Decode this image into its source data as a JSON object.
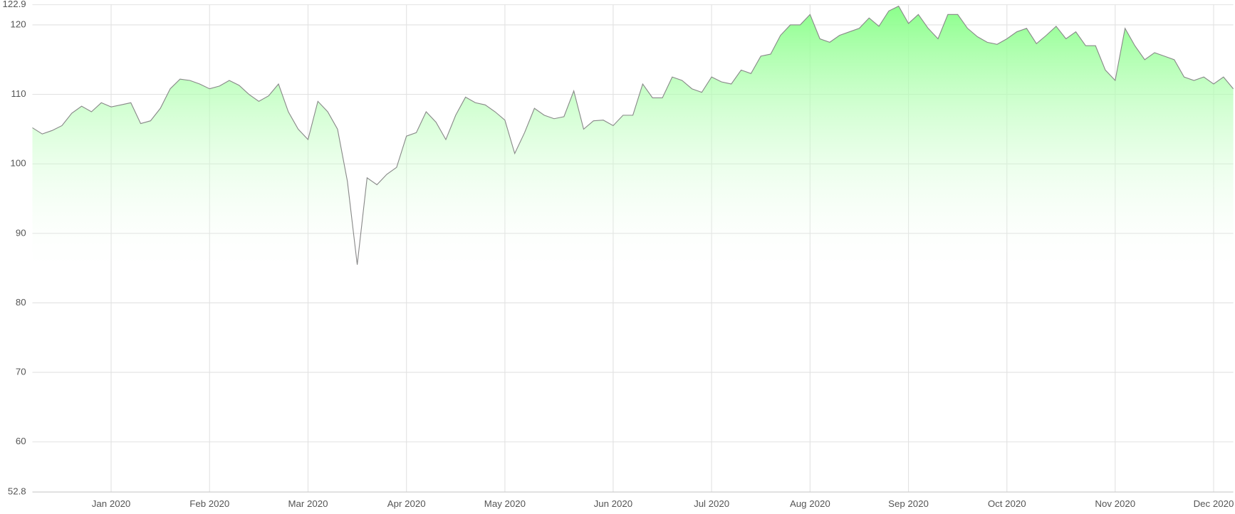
{
  "chart_data": {
    "type": "area",
    "categories": [
      null,
      null,
      null,
      null,
      null,
      null,
      null,
      null,
      "Jan 2020",
      null,
      null,
      null,
      null,
      null,
      null,
      null,
      null,
      null,
      "Feb 2020",
      null,
      null,
      null,
      null,
      null,
      null,
      null,
      null,
      null,
      "Mar 2020",
      null,
      null,
      null,
      null,
      null,
      null,
      null,
      null,
      null,
      "Apr 2020",
      null,
      null,
      null,
      null,
      null,
      null,
      null,
      null,
      null,
      "May 2020",
      null,
      null,
      null,
      null,
      null,
      null,
      null,
      null,
      null,
      null,
      "Jun 2020",
      null,
      null,
      null,
      null,
      null,
      null,
      null,
      null,
      null,
      "Jul 2020",
      null,
      null,
      null,
      null,
      null,
      null,
      null,
      null,
      null,
      "Aug 2020",
      null,
      null,
      null,
      null,
      null,
      null,
      null,
      null,
      null,
      "Sep 2020",
      null,
      null,
      null,
      null,
      null,
      null,
      null,
      null,
      null,
      "Oct 2020",
      null,
      null,
      null,
      null,
      null,
      null,
      null,
      null,
      null,
      null,
      "Nov 2020",
      null,
      null,
      null,
      null,
      null,
      null,
      null,
      null,
      null,
      "Dec 2020",
      null,
      null
    ],
    "values": [
      105.2,
      104.3,
      104.8,
      105.5,
      107.3,
      108.3,
      107.5,
      108.8,
      108.2,
      108.5,
      108.8,
      105.8,
      106.2,
      108,
      110.8,
      112.2,
      112,
      111.5,
      110.8,
      111.2,
      112,
      111.3,
      110,
      109,
      109.8,
      111.5,
      107.5,
      105,
      103.5,
      109,
      107.5,
      105,
      97.5,
      85.5,
      98,
      97,
      98.5,
      99.5,
      104,
      104.5,
      107.5,
      106,
      103.5,
      107,
      109.6,
      108.8,
      108.5,
      107.5,
      106.3,
      101.5,
      104.5,
      108,
      107,
      106.5,
      106.8,
      110.5,
      105,
      106.2,
      106.3,
      105.5,
      107,
      107,
      111.5,
      109.5,
      109.5,
      112.5,
      112,
      110.8,
      110.3,
      112.5,
      111.8,
      111.5,
      113.5,
      113,
      115.5,
      115.8,
      118.5,
      120,
      120,
      121.5,
      118,
      117.5,
      118.5,
      119,
      119.5,
      121,
      119.8,
      122,
      122.7,
      120.2,
      121.5,
      119.5,
      118,
      121.5,
      121.5,
      119.5,
      118.3,
      117.5,
      117.2,
      118,
      119,
      119.5,
      117.3,
      118.5,
      119.8,
      118,
      119,
      117,
      117,
      113.5,
      112,
      119.5,
      117,
      115,
      116,
      115.5,
      115,
      112.5,
      112,
      112.5,
      111.5,
      112.5,
      110.8
    ],
    "color": "#8aff8a",
    "line_color": "#888888",
    "ylim": [
      52.8,
      122.9
    ],
    "yticks": [
      52.8,
      60,
      70,
      80,
      90,
      100,
      110,
      120,
      122.9
    ],
    "grid": true
  }
}
